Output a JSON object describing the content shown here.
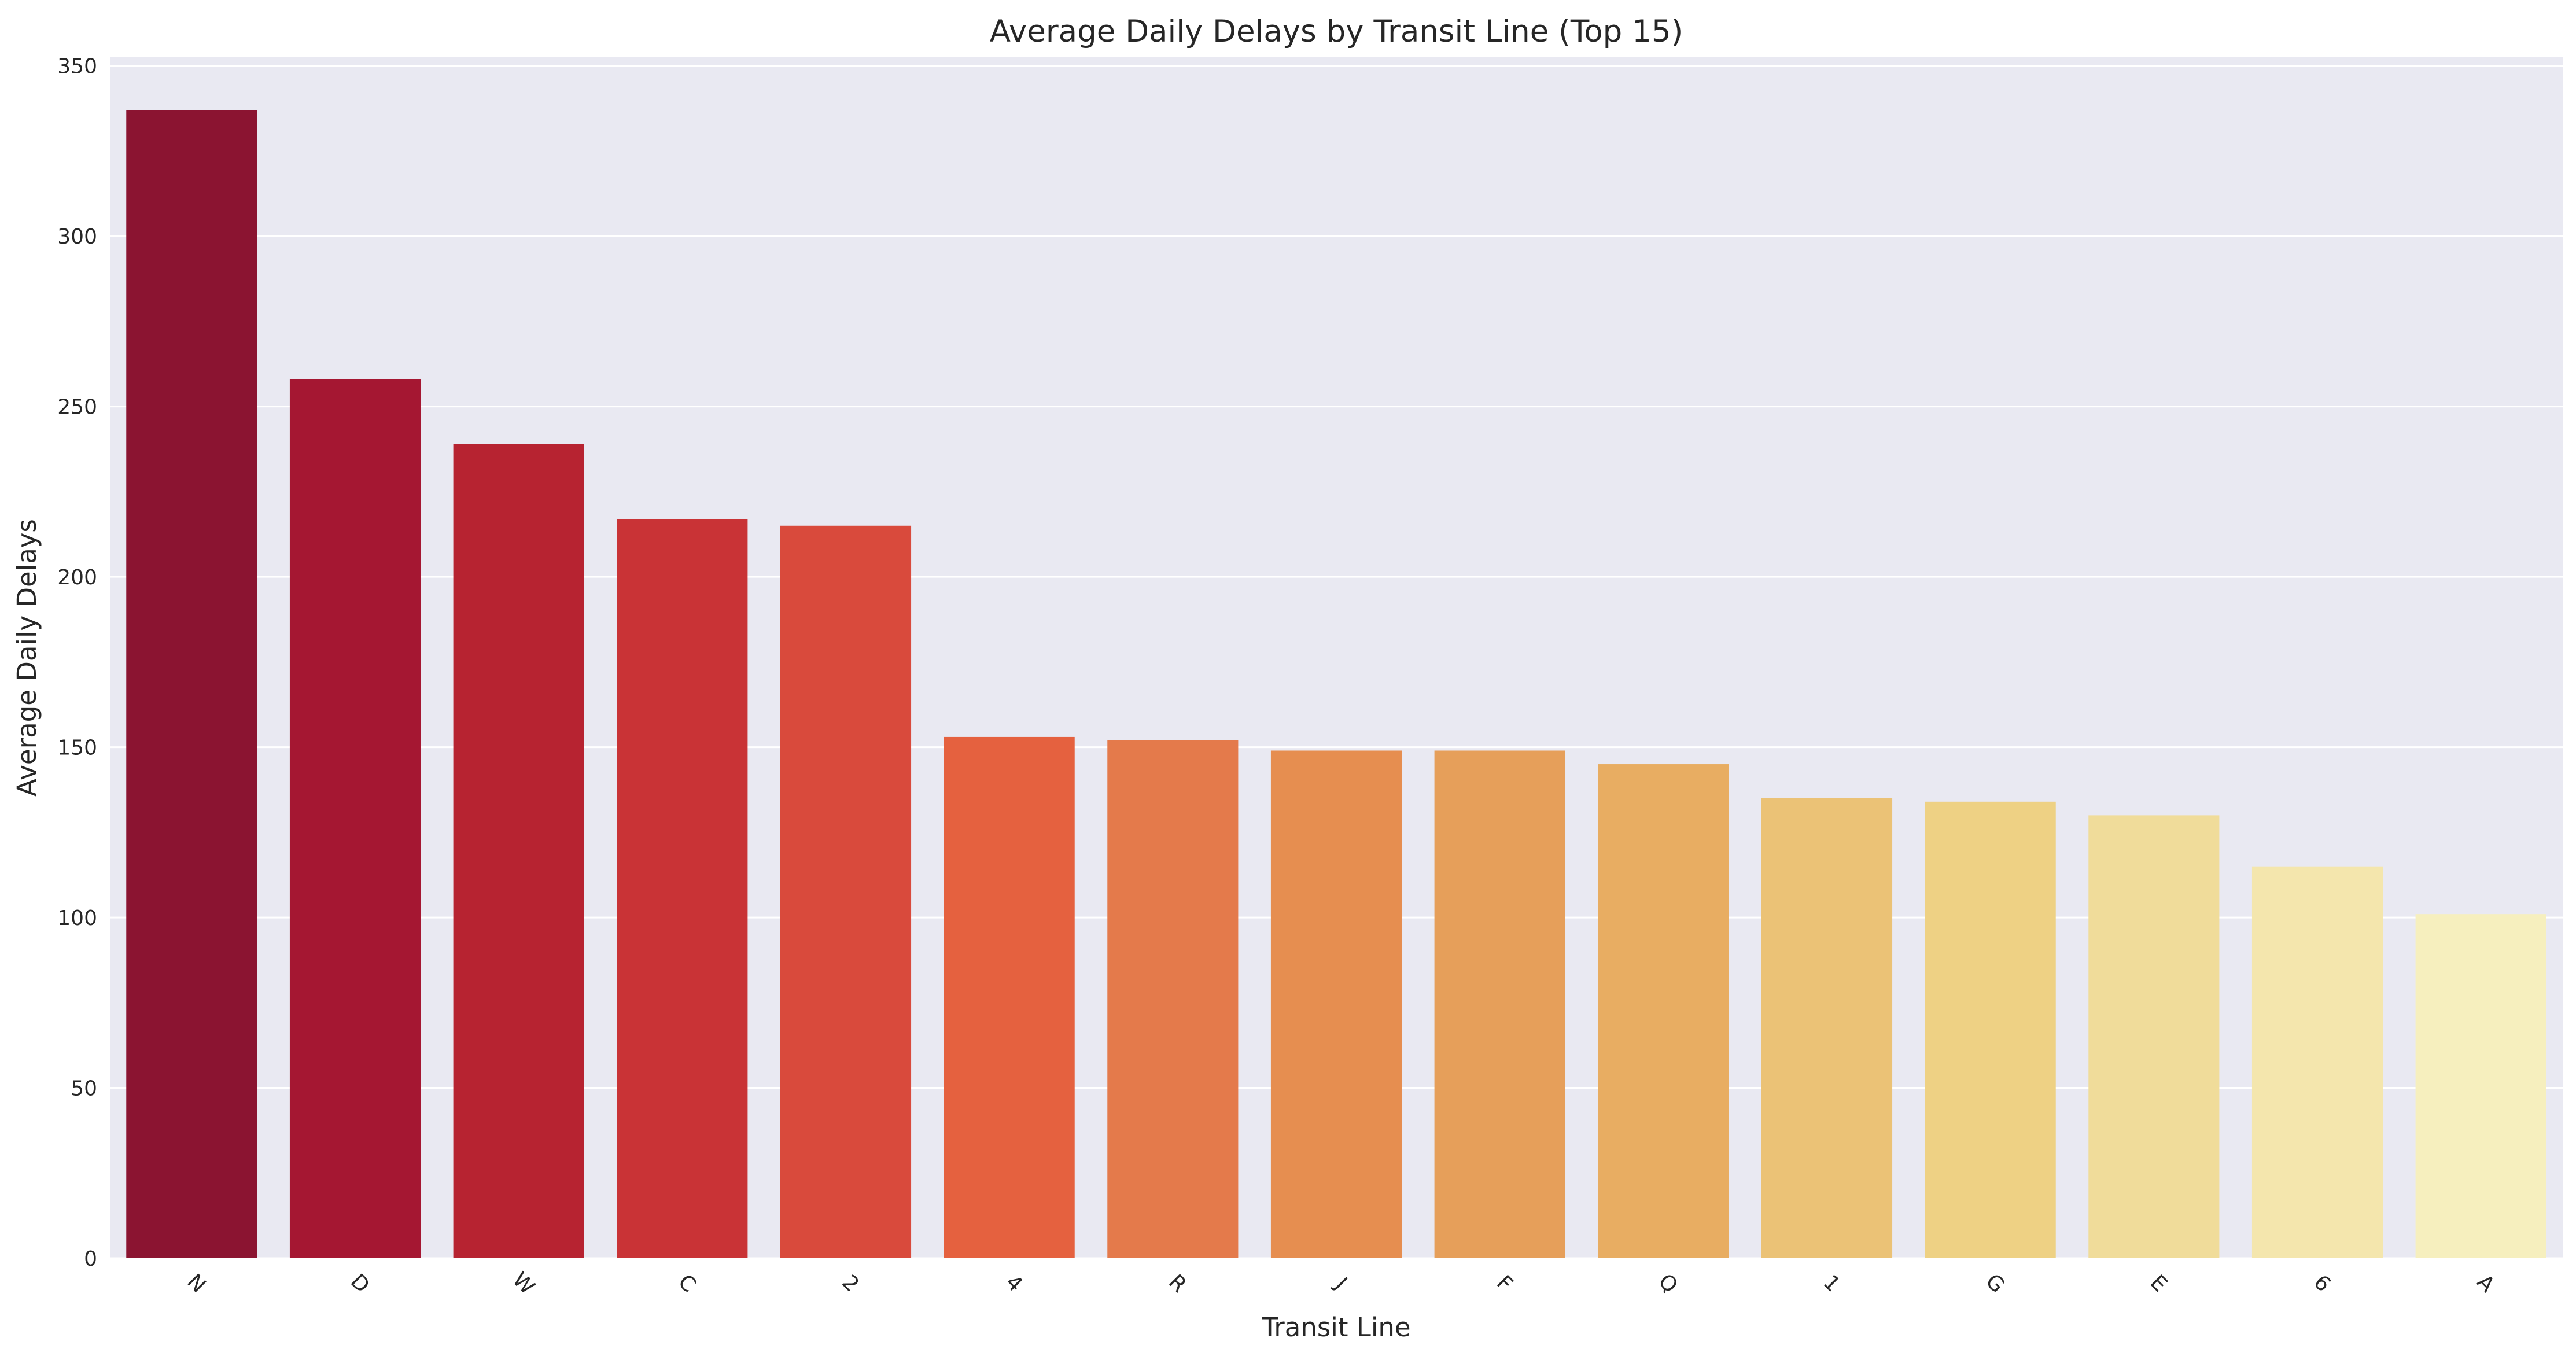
{
  "chart_data": {
    "type": "bar",
    "title": "Average Daily Delays by Transit Line (Top 15)",
    "xlabel": "Transit Line",
    "ylabel": "Average Daily Delays",
    "categories": [
      "N",
      "D",
      "W",
      "C",
      "2",
      "4",
      "R",
      "J",
      "F",
      "Q",
      "1",
      "G",
      "E",
      "6",
      "A"
    ],
    "values": [
      337,
      258,
      239,
      217,
      215,
      153,
      152,
      149,
      149,
      145,
      135,
      134,
      130,
      115,
      101
    ],
    "ylim": [
      0,
      350
    ],
    "yticks": [
      0,
      50,
      100,
      150,
      200,
      250,
      300,
      350
    ],
    "grid": true,
    "colors": [
      "#8b1431",
      "#a51732",
      "#b72331",
      "#c93336",
      "#d94a3c",
      "#e5613f",
      "#e47a4b",
      "#e68e50",
      "#e69f5a",
      "#e8ad62",
      "#ebc276",
      "#eed184",
      "#f0dc9a",
      "#f4e6ad",
      "#f6efbe"
    ],
    "background": "#e9e9f2"
  }
}
